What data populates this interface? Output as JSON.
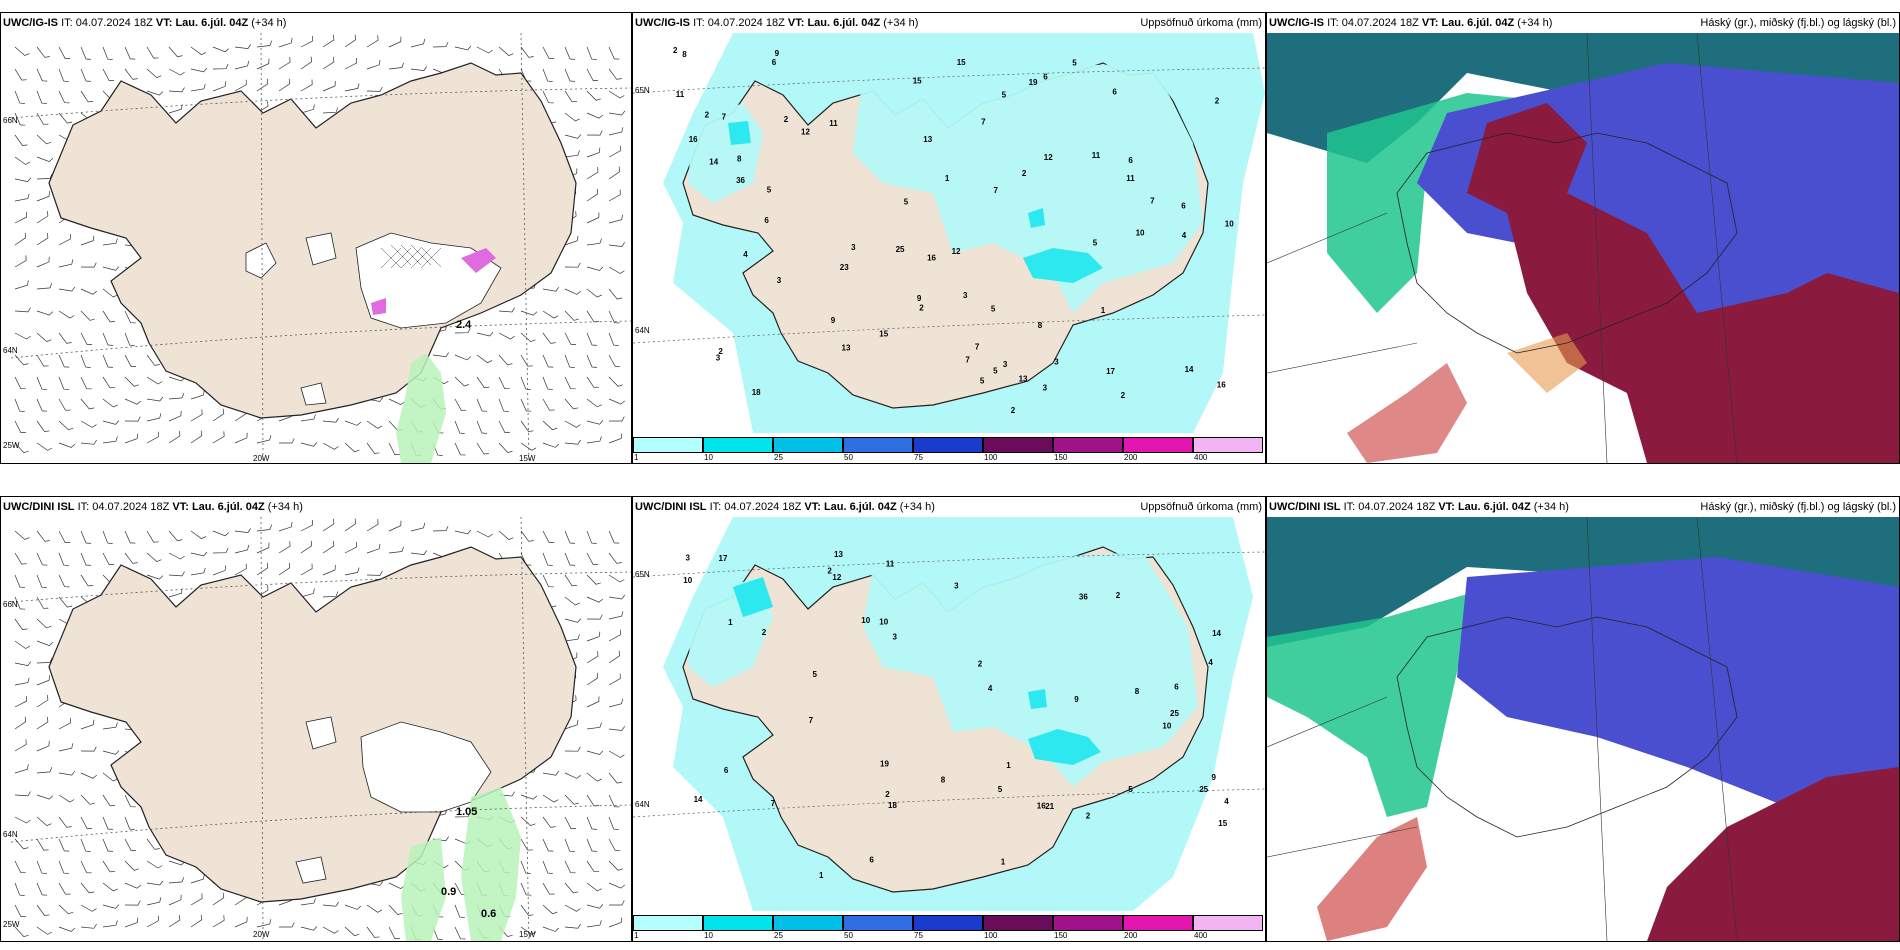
{
  "rows": [
    {
      "model": "UWC/IG-IS",
      "it_label": "IT:",
      "issue": "04.07.2024 18Z",
      "vt_label": "VT:",
      "valid": "Lau. 6.júl. 04Z",
      "lead": "(+34 h)",
      "wind_panel": {
        "lat_labels": [
          "66N",
          "64N",
          "25W"
        ],
        "lon_labels": [
          "20W",
          "15W"
        ],
        "values": [
          "2.4"
        ]
      },
      "precip_panel": {
        "title_right": "Uppsöfnuð úrkoma (mm)",
        "lat_labels": [
          "65N",
          "64N"
        ],
        "numbers": [
          "2",
          "4",
          "2",
          "7",
          "15",
          "13",
          "13",
          "6",
          "6",
          "16",
          "16",
          "6",
          "11",
          "11",
          "9",
          "9",
          "14",
          "15",
          "19",
          "3",
          "5",
          "5",
          "8",
          "7",
          "7",
          "3",
          "12",
          "10",
          "10",
          "5",
          "16",
          "5",
          "9",
          "5",
          "2",
          "5",
          "2",
          "6",
          "7",
          "12",
          "25",
          "14",
          "7",
          "17",
          "13",
          "6",
          "11",
          "15",
          "18",
          "36",
          "23",
          "8",
          "3",
          "2",
          "5",
          "4",
          "3",
          "1",
          "3",
          "6",
          "5",
          "2",
          "2",
          "8",
          "7",
          "3",
          "3",
          "11",
          "2",
          "12",
          "2",
          "1"
        ]
      },
      "cloud_panel": {
        "title_right": "Háský (gr.), miðský (fj.bl.) og lágský (bl.)"
      }
    },
    {
      "model": "UWC/DINI ISL",
      "it_label": "IT:",
      "issue": "04.07.2024 18Z",
      "vt_label": "VT:",
      "valid": "Lau. 6.júl. 04Z",
      "lead": "(+34 h)",
      "wind_panel": {
        "lat_labels": [
          "66N",
          "64N",
          "25W"
        ],
        "lon_labels": [
          "20W",
          "15W"
        ],
        "values": [
          "1.05",
          "0.9",
          "0.6"
        ]
      },
      "precip_panel": {
        "title_right": "Uppsöfnuð úrkoma (mm)",
        "lat_labels": [
          "65N",
          "64N"
        ],
        "numbers": [
          "3",
          "2",
          "4",
          "5",
          "6",
          "8",
          "10",
          "10",
          "16",
          "15",
          "13",
          "9",
          "11",
          "9",
          "4",
          "5",
          "6",
          "17",
          "10",
          "25",
          "14",
          "21",
          "7",
          "3",
          "36",
          "25",
          "18",
          "2",
          "1",
          "4",
          "5",
          "14",
          "19",
          "3",
          "2",
          "6",
          "2",
          "10",
          "12",
          "8",
          "7",
          "1",
          "2",
          "1",
          "2",
          "1"
        ]
      },
      "cloud_panel": {
        "title_right": "Háský (gr.), miðský (fj.bl.) og lágský (bl.)"
      }
    }
  ],
  "colorbar": {
    "labels": [
      "1",
      "10",
      "25",
      "50",
      "75",
      "100",
      "150",
      "200",
      "400"
    ],
    "colors": [
      "#b3ffff",
      "#00e5ec",
      "#00c0e8",
      "#2e6ee0",
      "#1a3ccc",
      "#6b0c5a",
      "#a0118a",
      "#e314b0",
      "#f3b4f3"
    ]
  },
  "colors": {
    "land": "#efe3d5",
    "wind_precip": "#b8f2b8",
    "precip_light": "#b3f8f8",
    "precip_mid": "#2de8ee",
    "cloud_high_teal": "#1f6e7d",
    "cloud_mid_blue": "#4a4fcf",
    "cloud_low_red": "#8a1a3e",
    "cloud_green": "#1fc68e"
  }
}
